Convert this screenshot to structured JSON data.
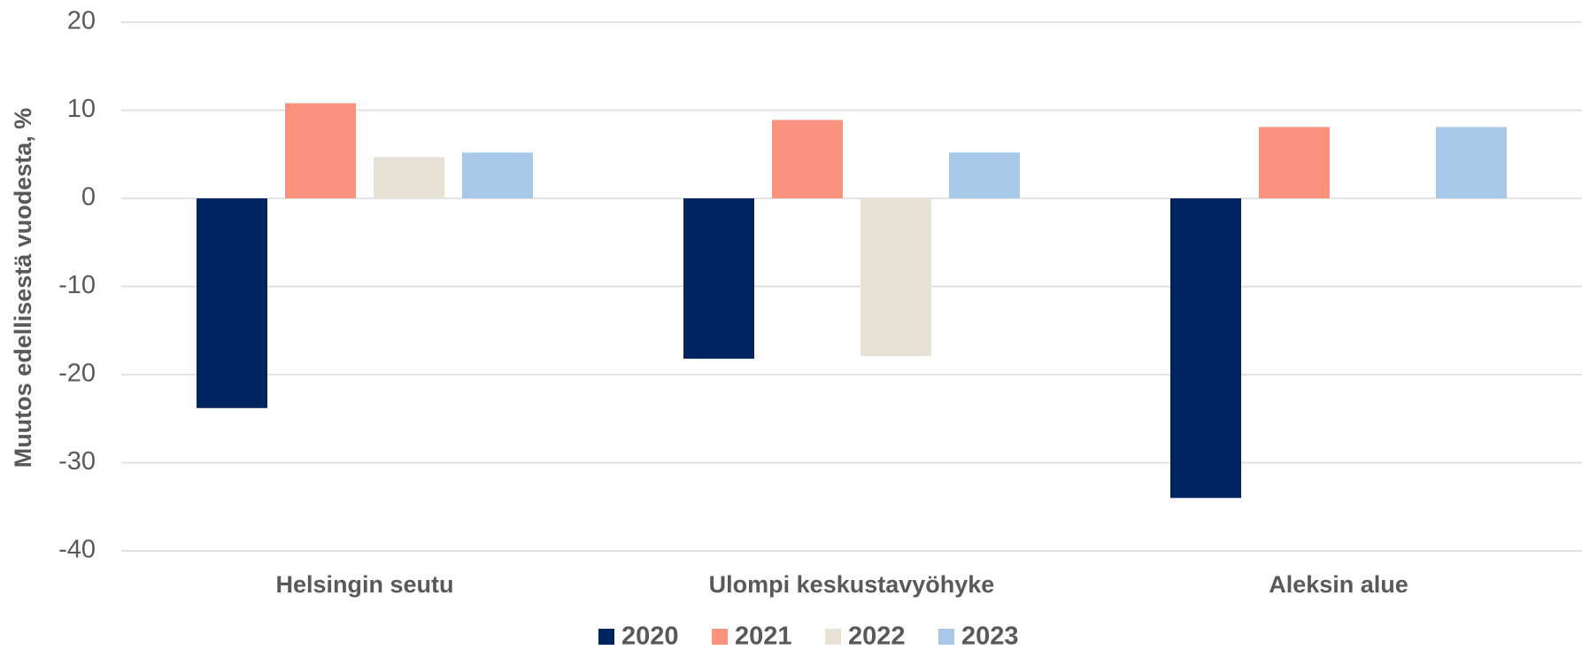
{
  "chart_data": {
    "type": "bar",
    "y_label": "Muutos edellisestä vuodesta, %",
    "categories": [
      "Helsingin seutu",
      "Ulompi keskustavyöhyke",
      "Aleksin alue"
    ],
    "series": [
      {
        "name": "2020",
        "color": "#002460",
        "values": [
          -23.8,
          -18.2,
          -34.0
        ]
      },
      {
        "name": "2021",
        "color": "#fb927f",
        "values": [
          10.8,
          8.9,
          8.1
        ]
      },
      {
        "name": "2022",
        "color": "#e8e1d5",
        "values": [
          4.7,
          -17.9,
          null
        ]
      },
      {
        "name": "2023",
        "color": "#a8c8e8",
        "values": [
          5.2,
          5.2,
          8.1
        ]
      }
    ],
    "ylim": [
      -40,
      20
    ],
    "yticks": [
      -40,
      -30,
      -20,
      -10,
      0,
      10,
      20
    ],
    "grid": true,
    "legend": "bottom"
  }
}
